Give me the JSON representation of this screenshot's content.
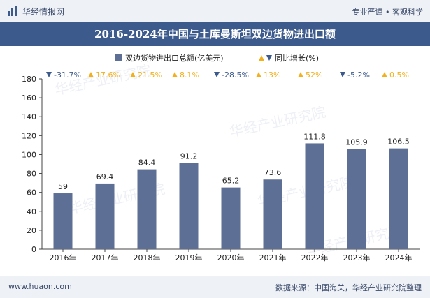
{
  "header": {
    "brand": "华经情报网",
    "tagline": "专业严谨 • 客观科学",
    "brand_color": "#3c5a8c"
  },
  "footer": {
    "site": "www.huaon.com",
    "source": "数据来源：中国海关，华经产业研究院整理"
  },
  "watermark": "华经产业研究院",
  "chart_data": {
    "type": "bar",
    "title": "2016-2024年中国与土库曼斯坦双边货物进出口额",
    "categories": [
      "2016年",
      "2017年",
      "2018年",
      "2019年",
      "2020年",
      "2021年",
      "2022年",
      "2023年",
      "2024年"
    ],
    "series": [
      {
        "name": "双边货物进出口总额(亿美元)",
        "values": [
          59,
          69.4,
          84.4,
          91.2,
          65.2,
          73.6,
          111.8,
          105.9,
          106.5
        ],
        "color": "#5e6f96"
      }
    ],
    "growth": {
      "name": "同比增长(%)",
      "labels": [
        "-31.7%",
        "17.6%",
        "21.5%",
        "8.1%",
        "-28.5%",
        "13%",
        "52%",
        "-5.2%",
        "0.5%"
      ],
      "directions": [
        "down",
        "up",
        "up",
        "up",
        "down",
        "up",
        "up",
        "down",
        "up"
      ],
      "up_color": "#f2b01e",
      "down_color": "#3c5a8c"
    },
    "ylim": [
      0,
      180
    ],
    "yticks": [
      0,
      20,
      40,
      60,
      80,
      100,
      120,
      140,
      160,
      180
    ],
    "grid": false,
    "legend": "top-center"
  }
}
